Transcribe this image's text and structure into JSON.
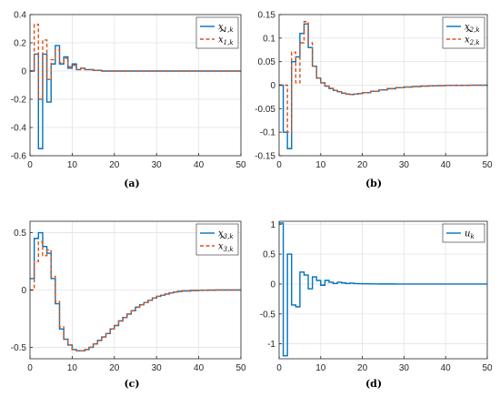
{
  "chart_data": [
    {
      "type": "line",
      "caption": "(a)",
      "xlim": [
        0,
        50
      ],
      "ylim": [
        -0.6,
        0.4
      ],
      "xticks": [
        "0",
        "10",
        "20",
        "30",
        "40",
        "50"
      ],
      "yticks": [
        "-0.6",
        "-0.4",
        "-0.2",
        "0",
        "0.2",
        "0.4"
      ],
      "ytick_values": [
        -0.6,
        -0.4,
        -0.2,
        0,
        0.2,
        0.4
      ],
      "grid": true,
      "legend_position": "top-right",
      "series": [
        {
          "name": "x",
          "sub": "1,k",
          "hat": false,
          "style": "solid",
          "color": "#0072BD",
          "x": [
            0,
            1,
            2,
            3,
            4,
            5,
            6,
            7,
            8,
            9,
            10,
            11,
            12,
            13,
            14,
            15,
            16,
            17,
            18,
            20,
            25,
            30,
            35,
            40,
            45,
            50
          ],
          "y": [
            0,
            0.12,
            -0.55,
            0.12,
            -0.22,
            0.05,
            0.18,
            0.05,
            0.1,
            0.02,
            0.05,
            0.01,
            0.02,
            0.01,
            0.01,
            0.005,
            0.005,
            0,
            0,
            0,
            0,
            0,
            0,
            0,
            0,
            0
          ]
        },
        {
          "name": "x",
          "sub": "1,k",
          "hat": true,
          "style": "dashed",
          "color": "#D95319",
          "x": [
            0,
            1,
            2,
            3,
            4,
            5,
            6,
            7,
            8,
            9,
            10,
            11,
            12,
            13,
            14,
            15,
            16,
            17,
            18,
            20,
            25,
            30,
            35,
            40,
            45,
            50
          ],
          "y": [
            0,
            0.33,
            -0.2,
            0.22,
            -0.06,
            0.08,
            0.15,
            0.06,
            0.09,
            0.03,
            0.04,
            0.01,
            0.02,
            0.01,
            0.01,
            0.005,
            0.005,
            0,
            0,
            0,
            0,
            0,
            0,
            0,
            0,
            0
          ]
        }
      ]
    },
    {
      "type": "line",
      "caption": "(b)",
      "xlim": [
        0,
        50
      ],
      "ylim": [
        -0.15,
        0.15
      ],
      "xticks": [
        "0",
        "10",
        "20",
        "30",
        "40",
        "50"
      ],
      "yticks": [
        "-0.15",
        "-0.1",
        "-0.05",
        "0",
        "0.05",
        "0.1",
        "0.15"
      ],
      "ytick_values": [
        -0.15,
        -0.1,
        -0.05,
        0,
        0.05,
        0.1,
        0.15
      ],
      "grid": true,
      "legend_position": "top-right",
      "series": [
        {
          "name": "x",
          "sub": "2,k",
          "hat": false,
          "style": "solid",
          "color": "#0072BD",
          "x": [
            0,
            1,
            2,
            3,
            4,
            5,
            6,
            7,
            8,
            9,
            10,
            11,
            12,
            13,
            14,
            15,
            16,
            17,
            18,
            19,
            20,
            22,
            24,
            26,
            28,
            30,
            32,
            34,
            36,
            38,
            40,
            42,
            44,
            46,
            48,
            50
          ],
          "y": [
            0,
            -0.1,
            -0.135,
            0.05,
            0.06,
            0.11,
            0.13,
            0.08,
            0.04,
            0.015,
            0.005,
            -0.002,
            -0.007,
            -0.011,
            -0.014,
            -0.017,
            -0.019,
            -0.02,
            -0.019,
            -0.018,
            -0.016,
            -0.013,
            -0.01,
            -0.0075,
            -0.0055,
            -0.004,
            -0.003,
            -0.002,
            -0.0015,
            -0.001,
            -0.0007,
            -0.0005,
            -0.0003,
            -0.0002,
            -0.0001,
            0
          ]
        },
        {
          "name": "x",
          "sub": "2,k",
          "hat": true,
          "style": "dashed",
          "color": "#D95319",
          "x": [
            0,
            1,
            2,
            3,
            4,
            5,
            6,
            7,
            8,
            9,
            10,
            11,
            12,
            13,
            14,
            15,
            16,
            17,
            18,
            19,
            20,
            22,
            24,
            26,
            28,
            30,
            32,
            34,
            36,
            38,
            40,
            42,
            44,
            46,
            48,
            50
          ],
          "y": [
            0,
            0,
            -0.1,
            0.07,
            0.005,
            0.09,
            0.135,
            0.09,
            0.04,
            0.015,
            0.005,
            -0.002,
            -0.007,
            -0.011,
            -0.014,
            -0.017,
            -0.019,
            -0.02,
            -0.019,
            -0.018,
            -0.016,
            -0.013,
            -0.01,
            -0.0075,
            -0.0055,
            -0.004,
            -0.003,
            -0.002,
            -0.0015,
            -0.001,
            -0.0007,
            -0.0005,
            -0.0003,
            -0.0002,
            -0.0001,
            0
          ]
        }
      ]
    },
    {
      "type": "line",
      "caption": "(c)",
      "xlim": [
        0,
        50
      ],
      "ylim": [
        -0.6,
        0.6
      ],
      "xticks": [
        "0",
        "10",
        "20",
        "30",
        "40",
        "50"
      ],
      "yticks": [
        "-0.5",
        "0",
        "0.5"
      ],
      "ytick_values": [
        -0.5,
        0,
        0.5
      ],
      "grid": true,
      "legend_position": "top-right",
      "series": [
        {
          "name": "x",
          "sub": "3,k",
          "hat": false,
          "style": "solid",
          "color": "#0072BD",
          "x": [
            0,
            1,
            2,
            3,
            4,
            5,
            6,
            7,
            8,
            9,
            10,
            11,
            12,
            13,
            14,
            15,
            16,
            17,
            18,
            19,
            20,
            21,
            22,
            23,
            24,
            25,
            26,
            27,
            28,
            29,
            30,
            31,
            32,
            33,
            34,
            35,
            36,
            38,
            40,
            42,
            44,
            46,
            48,
            50
          ],
          "y": [
            0.1,
            0.45,
            0.5,
            0.38,
            0.32,
            0.1,
            -0.12,
            -0.34,
            -0.43,
            -0.48,
            -0.52,
            -0.53,
            -0.53,
            -0.52,
            -0.5,
            -0.47,
            -0.44,
            -0.41,
            -0.38,
            -0.34,
            -0.31,
            -0.27,
            -0.24,
            -0.21,
            -0.18,
            -0.15,
            -0.13,
            -0.11,
            -0.09,
            -0.07,
            -0.055,
            -0.045,
            -0.035,
            -0.025,
            -0.018,
            -0.012,
            -0.008,
            -0.004,
            -0.002,
            -0.001,
            0,
            0,
            0,
            0
          ]
        },
        {
          "name": "x",
          "sub": "3,k",
          "hat": true,
          "style": "dashed",
          "color": "#D95319",
          "x": [
            0,
            1,
            2,
            3,
            4,
            5,
            6,
            7,
            8,
            9,
            10,
            11,
            12,
            13,
            14,
            15,
            16,
            17,
            18,
            19,
            20,
            21,
            22,
            23,
            24,
            25,
            26,
            27,
            28,
            29,
            30,
            31,
            32,
            33,
            34,
            35,
            36,
            38,
            40,
            42,
            44,
            46,
            48,
            50
          ],
          "y": [
            0,
            0.25,
            0.42,
            0.3,
            0.35,
            0.12,
            -0.1,
            -0.32,
            -0.43,
            -0.48,
            -0.52,
            -0.53,
            -0.53,
            -0.52,
            -0.5,
            -0.47,
            -0.44,
            -0.41,
            -0.38,
            -0.34,
            -0.31,
            -0.27,
            -0.24,
            -0.21,
            -0.18,
            -0.15,
            -0.13,
            -0.11,
            -0.09,
            -0.07,
            -0.055,
            -0.045,
            -0.035,
            -0.025,
            -0.018,
            -0.012,
            -0.008,
            -0.004,
            -0.002,
            -0.001,
            0,
            0,
            0,
            0
          ]
        }
      ]
    },
    {
      "type": "line",
      "caption": "(d)",
      "xlim": [
        0,
        50
      ],
      "ylim": [
        -1.25,
        1.05
      ],
      "xticks": [
        "0",
        "10",
        "20",
        "30",
        "40",
        "50"
      ],
      "yticks": [
        "-1",
        "-0.5",
        "0",
        "0.5",
        "1"
      ],
      "ytick_values": [
        -1,
        -0.5,
        0,
        0.5,
        1
      ],
      "grid": true,
      "legend_position": "top-right",
      "series": [
        {
          "name": "u",
          "sub": "k",
          "hat": false,
          "style": "solid",
          "color": "#0072BD",
          "x": [
            0,
            1,
            2,
            3,
            4,
            5,
            6,
            7,
            8,
            9,
            10,
            11,
            12,
            13,
            14,
            15,
            16,
            17,
            18,
            19,
            20,
            22,
            24,
            26,
            28,
            30,
            35,
            40,
            45,
            50
          ],
          "y": [
            1.02,
            -1.2,
            0.5,
            -0.35,
            -0.38,
            0.2,
            0.15,
            -0.08,
            0.12,
            0.06,
            -0.02,
            0.06,
            0.03,
            0.01,
            0.03,
            0.02,
            0.01,
            0.015,
            0.008,
            0.005,
            0.004,
            0.002,
            0.001,
            0.001,
            0,
            0,
            0,
            0,
            0,
            0
          ]
        }
      ]
    }
  ]
}
